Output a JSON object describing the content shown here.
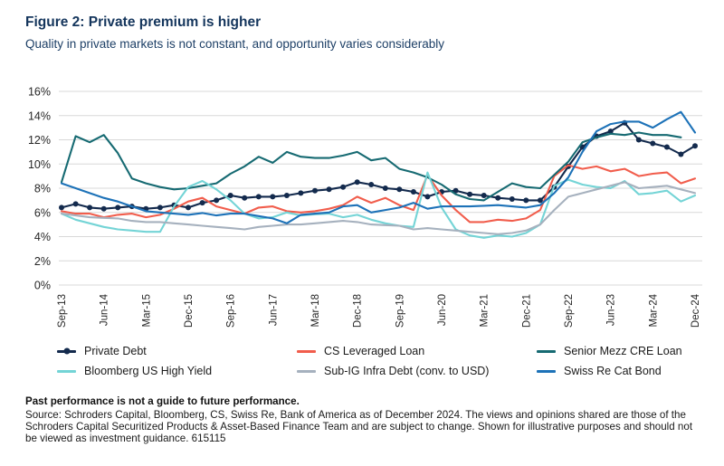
{
  "header": {
    "title": "Figure 2: Private premium is higher",
    "subtitle": "Quality in private markets is not constant, and opportunity varies considerably"
  },
  "chart_data": {
    "type": "line",
    "unit": "%",
    "ylim": [
      0,
      16
    ],
    "y_ticks": [
      "0%",
      "2%",
      "4%",
      "6%",
      "8%",
      "10%",
      "12%",
      "14%",
      "16%"
    ],
    "grid": "horizontal",
    "legend_position": "bottom",
    "x_tick_labels": [
      "Sep-13",
      "Jun-14",
      "Mar-15",
      "Dec-15",
      "Sep-16",
      "Jun-17",
      "Mar-18",
      "Dec-18",
      "Sep-19",
      "Jun-20",
      "Mar-21",
      "Dec-21",
      "Sep-22",
      "Jun-23",
      "Mar-24",
      "Dec-24"
    ],
    "x_tick_step": 3,
    "x_frequency": "quarterly",
    "n_points": 46,
    "series": [
      {
        "name": "Private Debt",
        "color": "#132a4d",
        "marker": true,
        "values": [
          6.4,
          6.7,
          6.4,
          6.3,
          6.4,
          6.5,
          6.3,
          6.4,
          6.6,
          6.4,
          6.8,
          7.0,
          7.4,
          7.2,
          7.3,
          7.3,
          7.4,
          7.6,
          7.8,
          7.9,
          8.1,
          8.5,
          8.3,
          8.0,
          7.9,
          7.7,
          7.3,
          7.7,
          7.8,
          7.5,
          7.4,
          7.2,
          7.1,
          7.0,
          7.0,
          8.1,
          9.8,
          11.4,
          12.3,
          12.7,
          13.4,
          12.0,
          11.7,
          11.4,
          10.8,
          11.5
        ]
      },
      {
        "name": "CS Leveraged Loan",
        "color": "#f15d4c",
        "marker": false,
        "values": [
          6.1,
          5.9,
          5.9,
          5.6,
          5.8,
          5.9,
          5.6,
          5.8,
          6.3,
          6.9,
          7.2,
          6.5,
          6.2,
          5.9,
          6.4,
          6.5,
          6.1,
          6.0,
          6.1,
          6.3,
          6.6,
          7.3,
          6.8,
          7.2,
          6.6,
          6.2,
          9.1,
          7.4,
          6.2,
          5.2,
          5.2,
          5.4,
          5.3,
          5.5,
          6.2,
          9.0,
          9.9,
          9.6,
          9.8,
          9.4,
          9.6,
          9.0,
          9.2,
          9.3,
          8.4,
          8.8
        ]
      },
      {
        "name": "Senior Mezz CRE Loan",
        "color": "#166a72",
        "marker": false,
        "values": [
          8.5,
          12.3,
          11.8,
          12.4,
          10.9,
          8.8,
          8.4,
          8.1,
          7.9,
          8.0,
          8.2,
          8.4,
          9.2,
          9.8,
          10.6,
          10.1,
          11.0,
          10.6,
          10.5,
          10.5,
          10.7,
          11.0,
          10.3,
          10.5,
          9.6,
          9.3,
          8.9,
          8.3,
          7.5,
          7.1,
          7.0,
          7.7,
          8.4,
          8.1,
          8.0,
          9.1,
          10.2,
          11.8,
          12.2,
          12.5,
          12.4,
          12.6,
          12.4,
          12.4,
          12.2,
          null
        ]
      },
      {
        "name": "Bloomberg US High Yield",
        "color": "#74d4d6",
        "marker": false,
        "values": [
          5.9,
          5.4,
          5.1,
          4.8,
          4.6,
          4.5,
          4.4,
          4.4,
          6.5,
          8.1,
          8.6,
          7.9,
          7.0,
          5.9,
          5.5,
          5.6,
          6.0,
          5.75,
          5.85,
          5.9,
          5.6,
          5.8,
          5.4,
          5.1,
          4.9,
          4.8,
          9.3,
          6.4,
          4.6,
          4.1,
          3.9,
          4.1,
          4.0,
          4.3,
          5.0,
          8.2,
          8.7,
          8.3,
          8.1,
          8.0,
          8.6,
          7.5,
          7.6,
          7.8,
          6.9,
          7.4
        ]
      },
      {
        "name": "Sub-IG Infra Debt (conv. to USD)",
        "color": "#a6b1be",
        "marker": false,
        "values": [
          5.9,
          5.75,
          5.6,
          5.55,
          5.5,
          5.3,
          5.2,
          5.2,
          5.1,
          5.0,
          4.9,
          4.8,
          4.7,
          4.6,
          4.8,
          4.9,
          5.0,
          5.0,
          5.1,
          5.2,
          5.3,
          5.2,
          5.0,
          4.95,
          4.9,
          4.6,
          4.7,
          4.6,
          4.5,
          4.4,
          4.3,
          4.2,
          4.3,
          4.5,
          5.0,
          6.2,
          7.3,
          7.6,
          7.9,
          8.2,
          8.5,
          8.0,
          8.1,
          8.2,
          7.9,
          7.6
        ]
      },
      {
        "name": "Swiss Re Cat Bond",
        "color": "#1d72b8",
        "marker": false,
        "values": [
          8.4,
          8.0,
          7.6,
          7.2,
          6.9,
          6.5,
          6.1,
          6.0,
          5.9,
          5.8,
          5.95,
          5.75,
          5.9,
          5.9,
          5.7,
          5.5,
          5.1,
          5.8,
          5.9,
          6.0,
          6.5,
          6.6,
          6.0,
          6.2,
          6.4,
          6.8,
          6.3,
          6.5,
          6.5,
          6.5,
          6.55,
          6.6,
          6.5,
          6.4,
          6.6,
          7.6,
          8.9,
          11.0,
          12.7,
          13.3,
          13.5,
          13.5,
          13.0,
          13.7,
          14.3,
          12.6
        ]
      }
    ]
  },
  "footer": {
    "disclaimer": "Past performance is not a guide to future performance.",
    "source": "Source: Schroders Capital, Bloomberg, CS, Swiss Re, Bank of America as of December 2024. The views and opinions shared are those of the Schroders Capital Securitized Products & Asset-Based Finance Team and are subject to change. Shown for illustrative purposes and should not be viewed as investment guidance. 615115"
  }
}
